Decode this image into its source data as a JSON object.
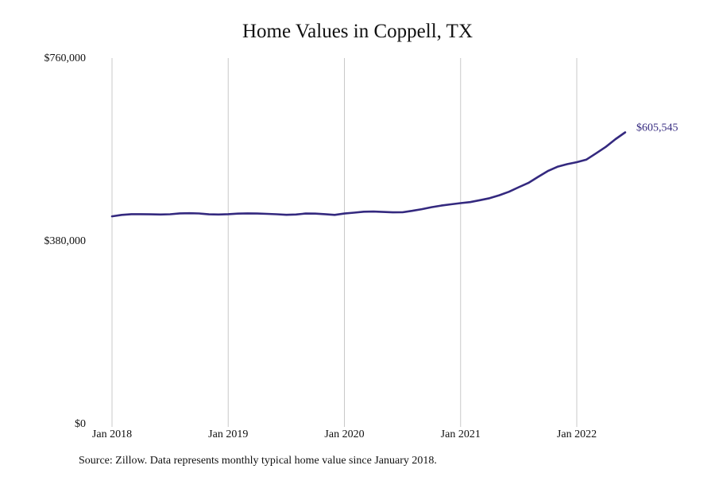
{
  "chart_data": {
    "type": "line",
    "title": "Home Values in Coppell, TX",
    "xlabel": "",
    "ylabel": "",
    "ylim": [
      0,
      760000
    ],
    "y_ticks": [
      {
        "value": 0,
        "label": "$0"
      },
      {
        "value": 380000,
        "label": "$380,000"
      },
      {
        "value": 760000,
        "label": "$760,000"
      }
    ],
    "x_ticks": [
      "Jan 2018",
      "Jan 2019",
      "Jan 2020",
      "Jan 2021",
      "Jan 2022"
    ],
    "grid": "vertical",
    "line_color": "#34297f",
    "series": [
      {
        "start": "2018-01",
        "values": [
          431000,
          434000,
          435500,
          435500,
          435200,
          434900,
          435300,
          437200,
          437500,
          437000,
          435200,
          434900,
          435500,
          436600,
          437100,
          436800,
          436100,
          435300,
          434200,
          434900,
          436800,
          436700,
          435500,
          434000,
          436800,
          438700,
          440700,
          440900,
          440100,
          439300,
          439500,
          442500,
          446000,
          450100,
          453300,
          456000,
          458400,
          460600,
          464600,
          468800,
          474800,
          482100,
          491500,
          500500,
          513000,
          525000,
          534000,
          539500,
          543500,
          549000,
          562000,
          575500,
          591500,
          605545
        ]
      }
    ],
    "end_label": "$605,545"
  },
  "source_note": "Source: Zillow. Data represents monthly typical home value since January 2018."
}
